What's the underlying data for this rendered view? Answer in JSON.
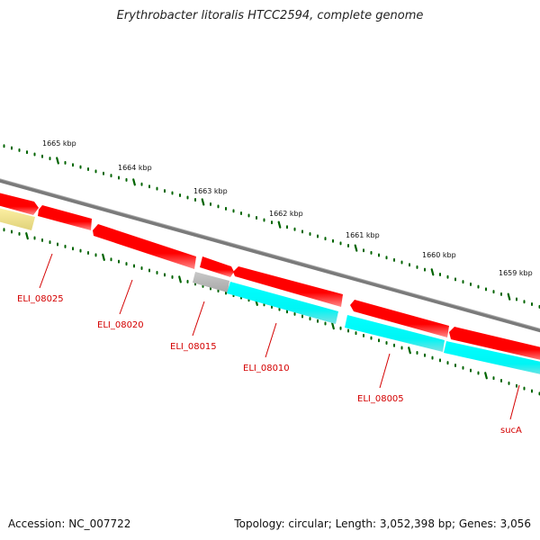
{
  "title": "Erythrobacter litoralis HTCC2594, complete genome",
  "footer": {
    "accession": "Accession: NC_007722",
    "summary": "Topology: circular; Length: 3,052,398 bp; Genes: 3,056"
  },
  "colors": {
    "backbone": "#808080",
    "forward_gene": "#ff0000",
    "reverse_cds": "#00ffff",
    "rna_gene": "#ffff99",
    "other_gene": "#bdbdbd",
    "ticks": "#006400",
    "labels": "#d40000"
  },
  "tick_labels": [
    "1665 kbp",
    "1664 kbp",
    "1663 kbp",
    "1662 kbp",
    "1661 kbp",
    "1660 kbp",
    "1659 kbp"
  ],
  "gene_labels": [
    "ELI_08025",
    "ELI_08020",
    "ELI_08015",
    "ELI_08010",
    "ELI_08005",
    "sucA"
  ]
}
